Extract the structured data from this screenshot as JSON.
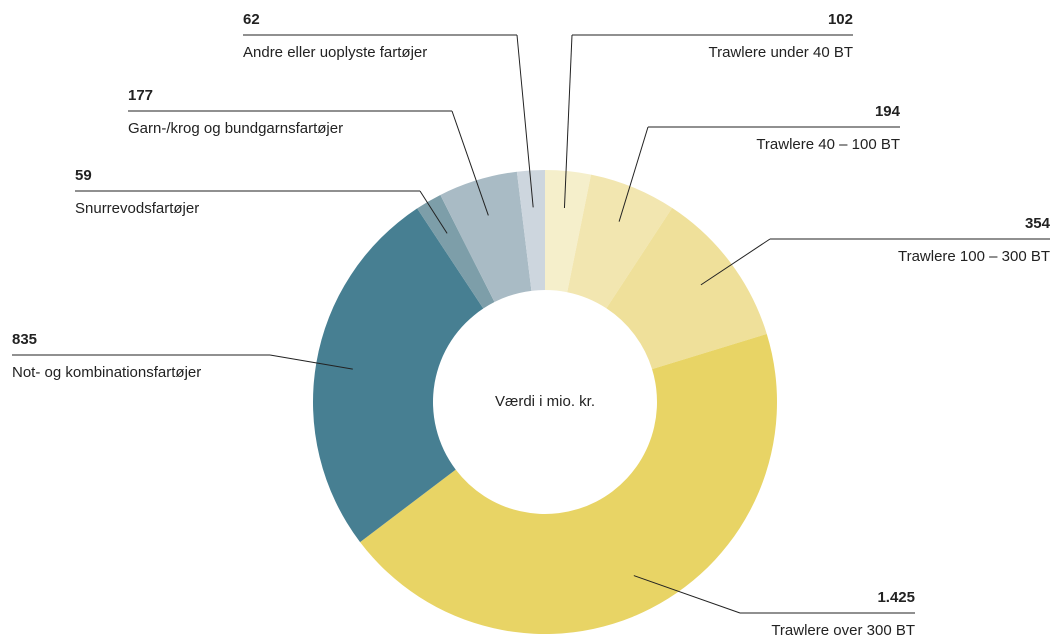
{
  "chart_data": {
    "type": "donut",
    "center_label": "Værdi i mio. kr.",
    "categories": [
      "Trawlere under 40 BT",
      "Trawlere 40 – 100 BT",
      "Trawlere 100 – 300 BT",
      "Trawlere over 300 BT",
      "Not- og kombinationsfartøjer",
      "Snurrevodsfartøjer",
      "Garn-/krog og bundgarnsfartøjer",
      "Andre eller uoplyste fartøjer"
    ],
    "values": [
      102,
      194,
      354,
      1425,
      835,
      59,
      177,
      62
    ],
    "value_labels": [
      "102",
      "194",
      "354",
      "1.425",
      "835",
      "59",
      "177",
      "62"
    ],
    "colors": [
      "#f5efcb",
      "#f2e6b0",
      "#efe09a",
      "#e8d465",
      "#477f92",
      "#7d9ea9",
      "#a9bbc5",
      "#cdd6de"
    ]
  }
}
